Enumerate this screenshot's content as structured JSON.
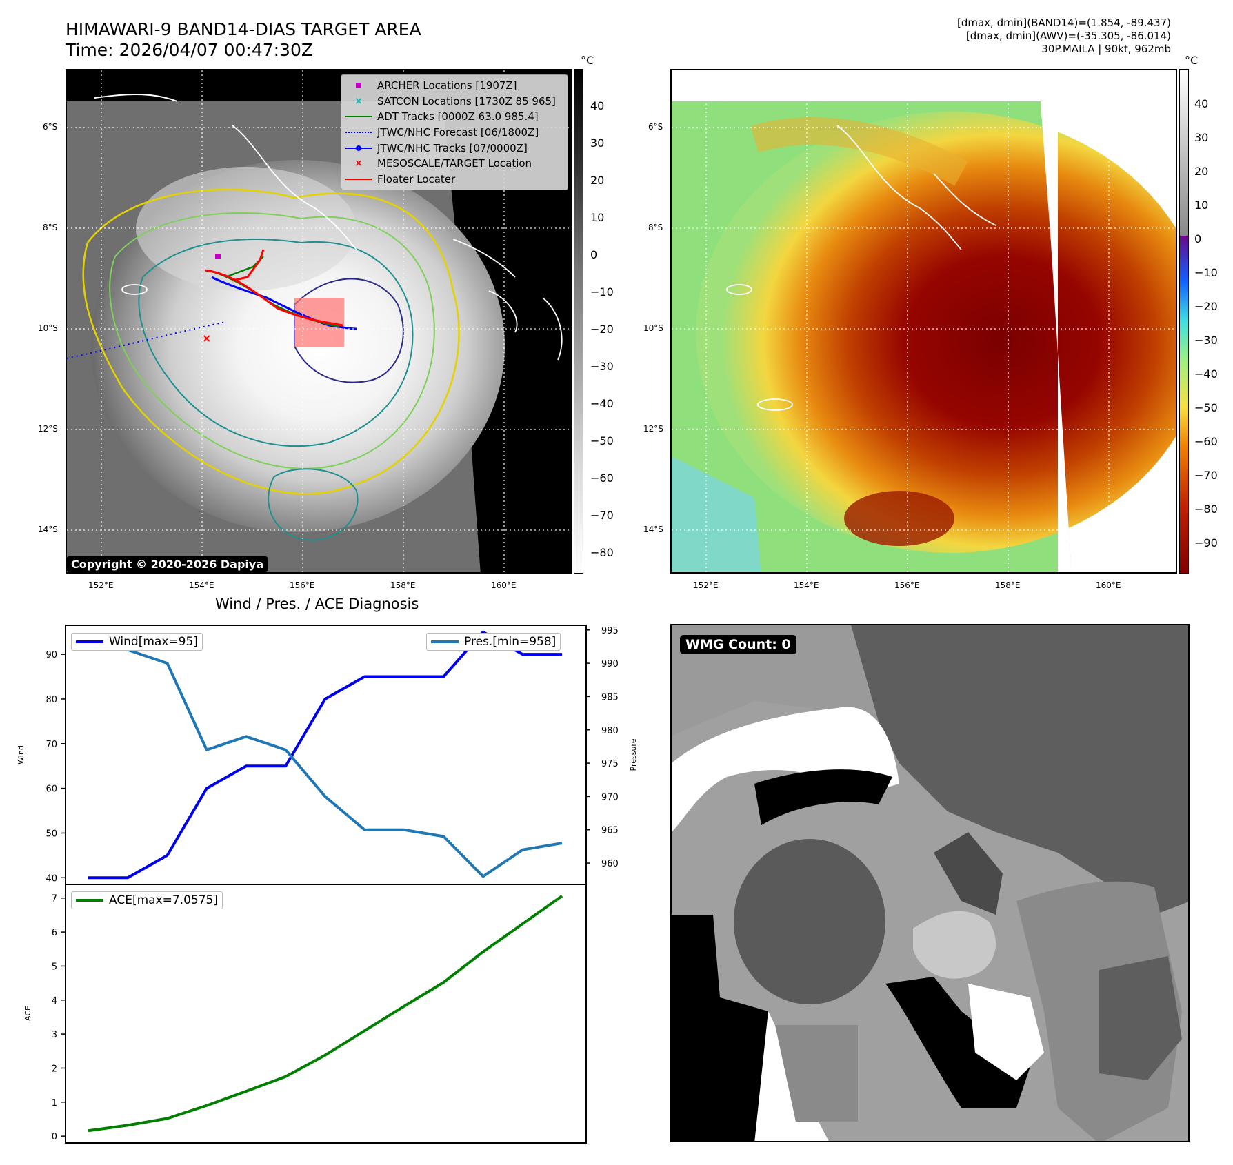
{
  "header": {
    "title_line1": "HIMAWARI-9 BAND14-DIAS TARGET AREA",
    "title_line2": "Time: 2026/04/07 00:47:30Z",
    "info_line1": "[dmax, dmin](BAND14)=(1.854, -89.437)",
    "info_line2": "[dmax, dmin](AWV)=(-35.305, -86.014)",
    "info_line3": "30P.MAILA | 90kt, 962mb"
  },
  "map_axes": {
    "lat_labels": [
      "6°S",
      "8°S",
      "10°S",
      "12°S",
      "14°S"
    ],
    "lon_labels": [
      "152°E",
      "154°E",
      "156°E",
      "158°E",
      "160°E"
    ]
  },
  "left_map": {
    "colorbar_unit": "°C",
    "colorbar_ticks": [
      "40",
      "30",
      "20",
      "10",
      "0",
      "−10",
      "−20",
      "−30",
      "−40",
      "−50",
      "−60",
      "−70",
      "−80"
    ],
    "legend": [
      {
        "label": "ARCHER Locations [1907Z]",
        "color": "#c000c0",
        "symbol": "square"
      },
      {
        "label": "SATCON Locations [1730Z 85 965]",
        "color": "#00bfbf",
        "symbol": "x"
      },
      {
        "label": "ADT Tracks [0000Z 63.0 985.4]",
        "color": "#008000",
        "symbol": "line"
      },
      {
        "label": "JTWC/NHC Forecast [06/1800Z]",
        "color": "#0000ff",
        "symbol": "dotted"
      },
      {
        "label": "JTWC/NHC Tracks [07/0000Z]",
        "color": "#0000ff",
        "symbol": "dotline"
      },
      {
        "label": "MESOSCALE/TARGET Location",
        "color": "#ff0000",
        "symbol": "x"
      },
      {
        "label": "Floater Locater",
        "color": "#ff0000",
        "symbol": "line"
      }
    ],
    "copyright": "Copyright © 2020-2026 Dapiya"
  },
  "right_map": {
    "colorbar_unit": "°C",
    "colorbar_ticks": [
      "40",
      "30",
      "20",
      "10",
      "0",
      "−10",
      "−20",
      "−30",
      "−40",
      "−50",
      "−60",
      "−70",
      "−80",
      "−90"
    ]
  },
  "diagnosis_title": "Wind / Pres. / ACE Diagnosis",
  "wmg": {
    "label": "WMG Count: 0"
  },
  "chart_data": [
    {
      "type": "line",
      "title": "Wind / Pres. / ACE Diagnosis",
      "ylabel": "Wind",
      "y2label": "Pressure",
      "ylim": [
        38.5,
        96.5
      ],
      "y2lim": [
        956.8,
        995.7
      ],
      "yticks": [
        40,
        50,
        60,
        70,
        80,
        90
      ],
      "y2ticks": [
        960,
        965,
        970,
        975,
        980,
        985,
        990,
        995
      ],
      "series": [
        {
          "name": "Wind[max=95]",
          "color": "#0000ee",
          "axis": "left",
          "values": [
            40,
            40,
            45,
            60,
            65,
            65,
            80,
            85,
            85,
            85,
            95,
            90,
            90
          ]
        },
        {
          "name": "Pres.[min=958]",
          "color": "#1f77b4",
          "axis": "right",
          "values": [
            994,
            992,
            990,
            977,
            979,
            977,
            970,
            965,
            965,
            964,
            958,
            962,
            963
          ]
        }
      ]
    },
    {
      "type": "line",
      "ylabel": "ACE",
      "ylim": [
        -0.2,
        7.4
      ],
      "yticks": [
        0,
        1,
        2,
        3,
        4,
        5,
        6,
        7
      ],
      "series": [
        {
          "name": "ACE[max=7.0575]",
          "color": "#008000",
          "axis": "left",
          "values": [
            0.16,
            0.32,
            0.52,
            0.9,
            1.32,
            1.75,
            2.38,
            3.1,
            3.82,
            4.52,
            5.42,
            6.24,
            7.06
          ]
        }
      ]
    }
  ]
}
